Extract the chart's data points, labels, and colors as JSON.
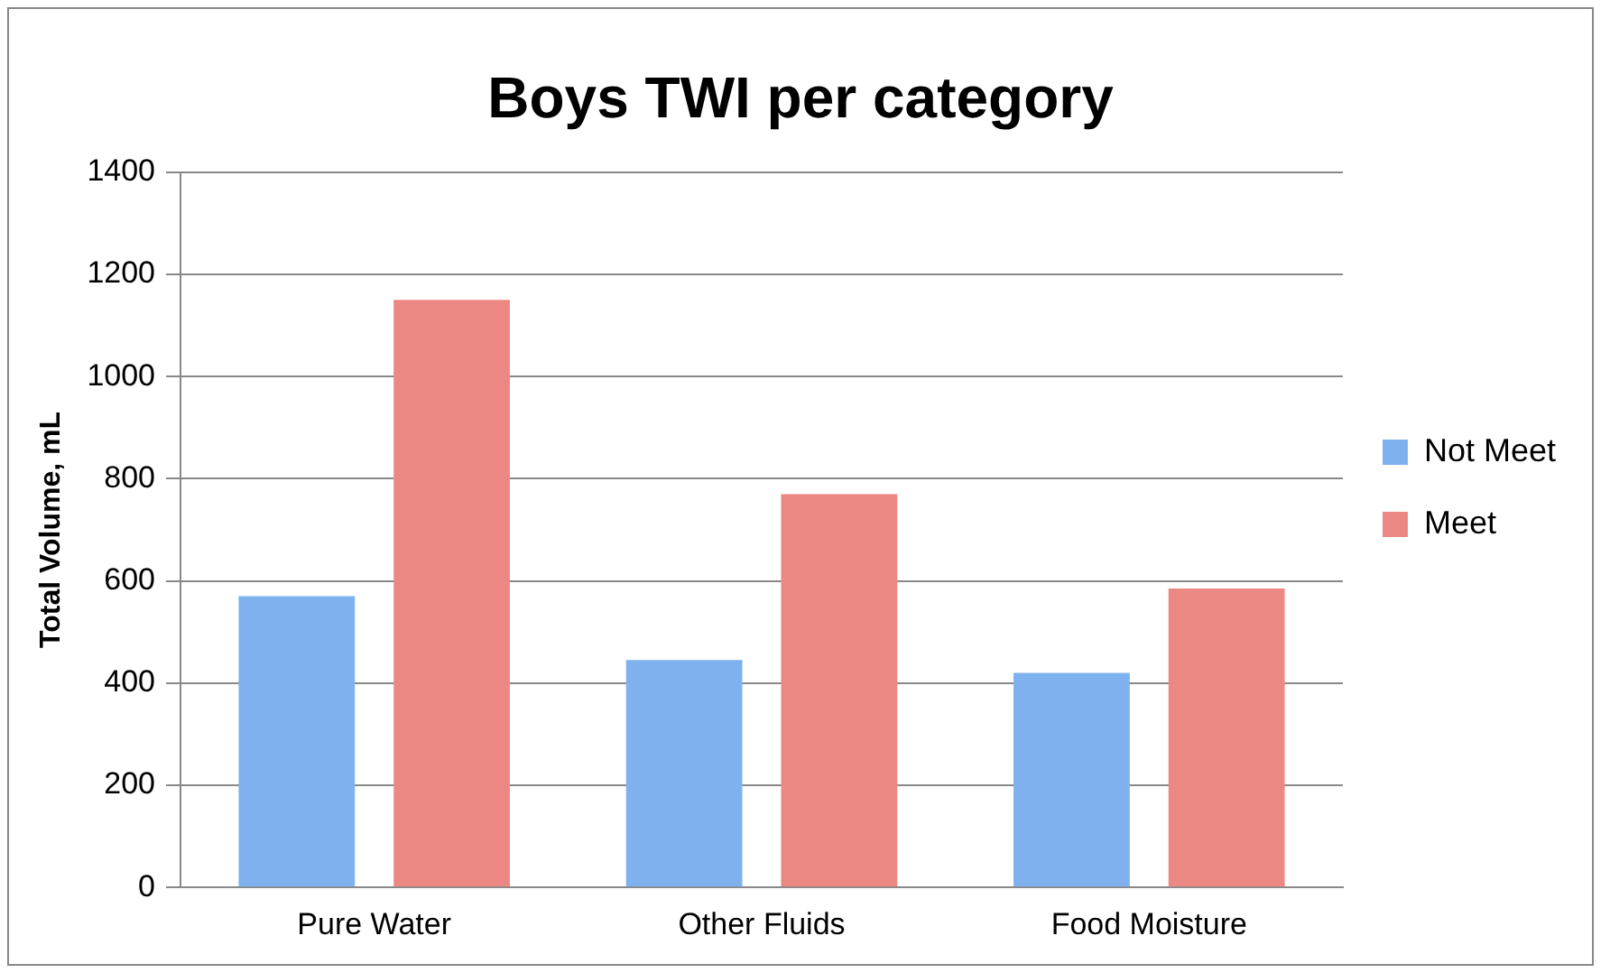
{
  "chart_data": {
    "type": "bar",
    "title": "Boys TWI per category",
    "ylabel": "Total Volume, mL",
    "categories": [
      "Pure Water",
      "Other Fluids",
      "Food Moisture"
    ],
    "series": [
      {
        "name": "Not Meet",
        "color": "#7fb1ee",
        "values": [
          570,
          445,
          420
        ]
      },
      {
        "name": "Meet",
        "color": "#ec8883",
        "values": [
          1150,
          770,
          585
        ]
      }
    ],
    "ylim": [
      0,
      1400
    ],
    "yticks": [
      0,
      200,
      400,
      600,
      800,
      1000,
      1200,
      1400
    ],
    "grid": "y",
    "legend": "right"
  }
}
